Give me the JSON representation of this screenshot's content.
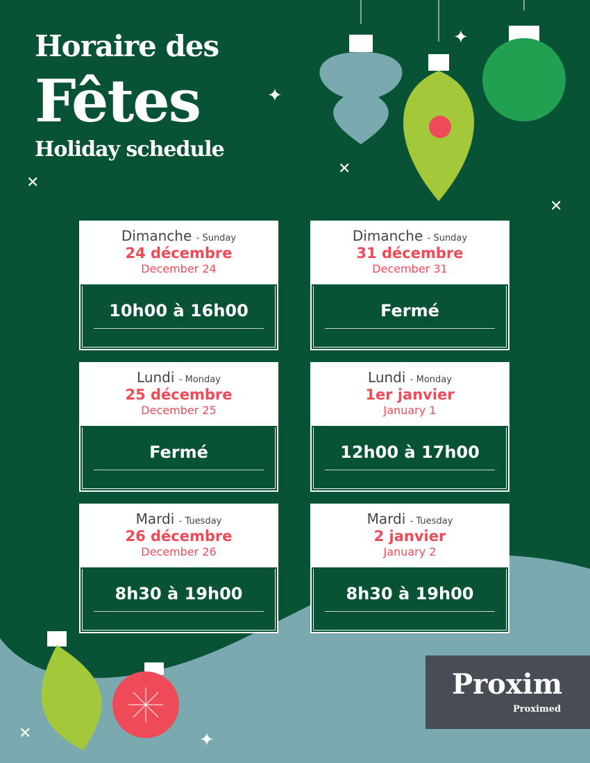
{
  "header": {
    "line1": "Horaire des",
    "line2": "Fêtes",
    "line3": "Holiday schedule"
  },
  "cards": [
    {
      "day": "Dimanche",
      "day_en": "- Sunday",
      "date_fr": "24 décembre",
      "date_en": "December 24",
      "hours": "10h00 à 16h00"
    },
    {
      "day": "Dimanche",
      "day_en": "- Sunday",
      "date_fr": "31 décembre",
      "date_en": "December 31",
      "hours": "Fermé"
    },
    {
      "day": "Lundi",
      "day_en": "- Monday",
      "date_fr": "25 décembre",
      "date_en": "December 25",
      "hours": "Fermé"
    },
    {
      "day": "Lundi",
      "day_en": "- Monday",
      "date_fr": "1er janvier",
      "date_en": "January 1",
      "hours": "12h00 à 17h00"
    },
    {
      "day": "Mardi",
      "day_en": "- Tuesday",
      "date_fr": "26 décembre",
      "date_en": "December 26",
      "hours": "8h30 à 19h00"
    },
    {
      "day": "Mardi",
      "day_en": "- Tuesday",
      "date_fr": "2 janvier",
      "date_en": "January 2",
      "hours": "8h30 à 19h00"
    }
  ],
  "logo": {
    "name": "Proxim",
    "sub": "Proximed"
  },
  "colors": {
    "green": "#085235",
    "red": "#ef4a57",
    "teal": "#7aaab0",
    "lime": "#a3c93a"
  }
}
